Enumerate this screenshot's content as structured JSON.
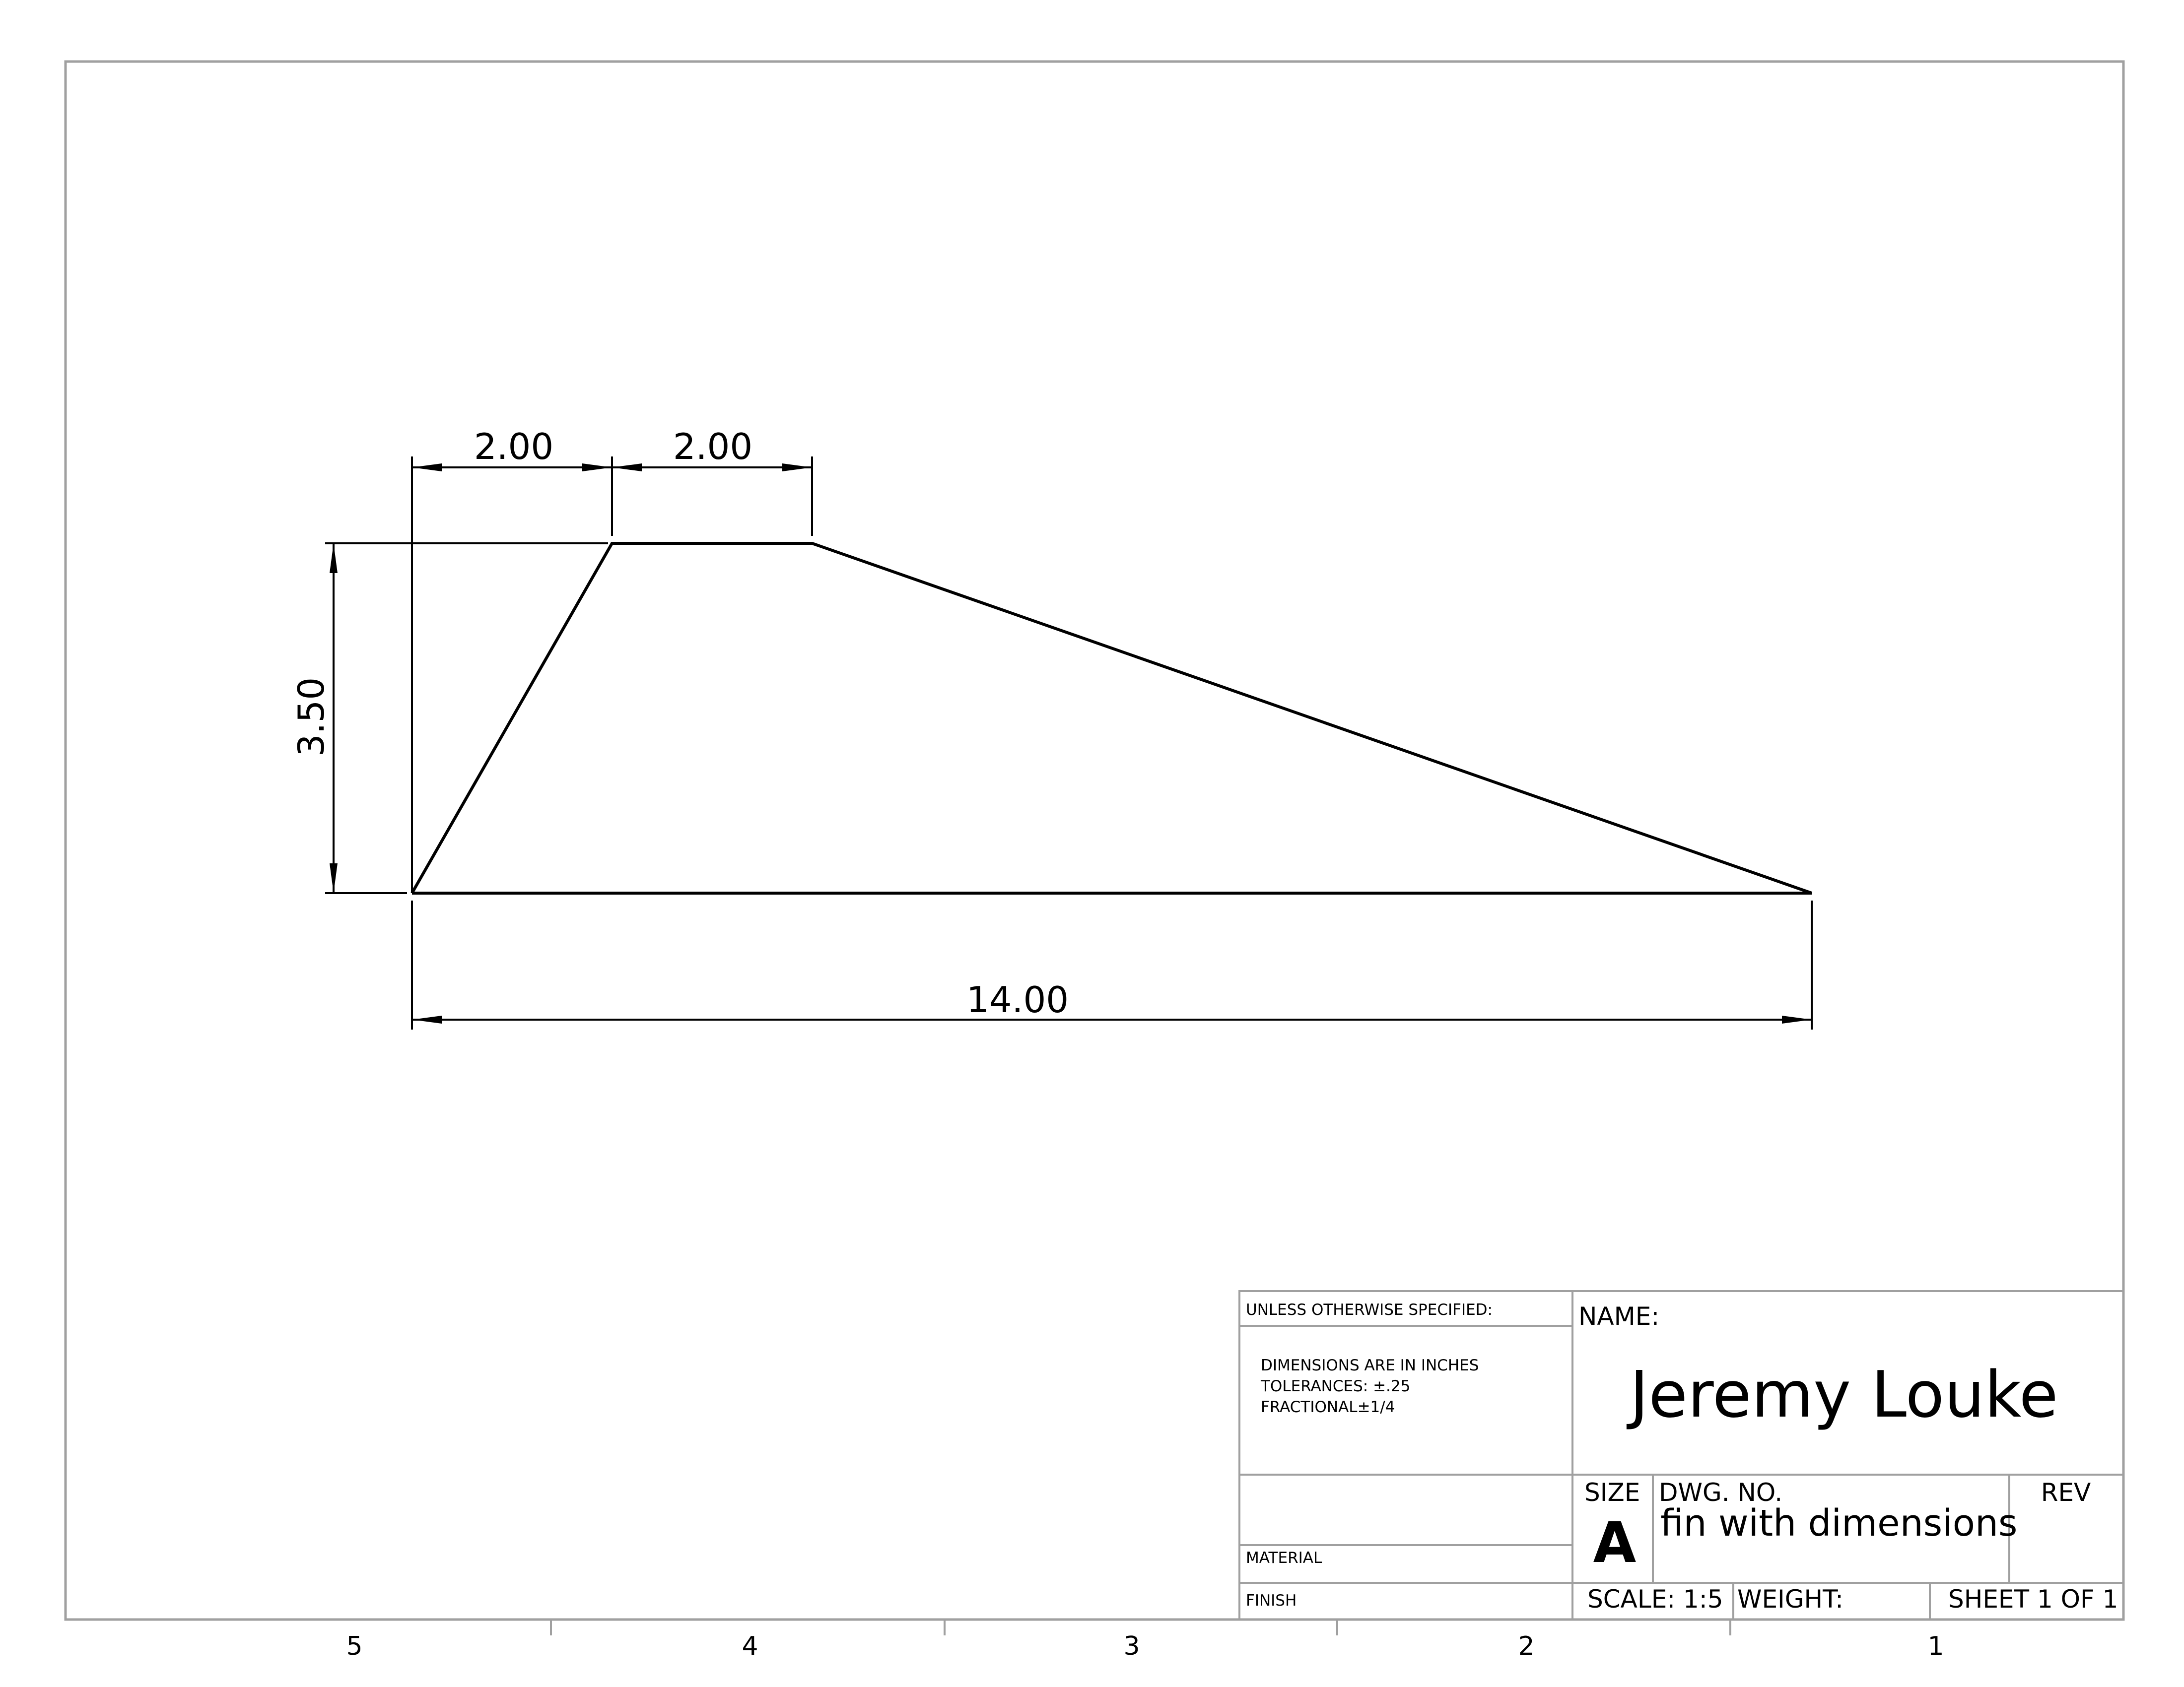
{
  "dimensions": {
    "top_left_width": "2.00",
    "top_flat_width": "2.00",
    "height": "3.50",
    "base_length": "14.00"
  },
  "zones": [
    "5",
    "4",
    "3",
    "2",
    "1"
  ],
  "title_block": {
    "unless_specified": "UNLESS OTHERWISE SPECIFIED:",
    "notes": [
      "DIMENSIONS ARE IN INCHES",
      "TOLERANCES: ±.25",
      "FRACTIONAL±1/4"
    ],
    "material_label": "MATERIAL",
    "finish_label": "FINISH",
    "name_label": "NAME:",
    "name_value": "Jeremy Louke",
    "size_label": "SIZE",
    "size_value": "A",
    "dwg_no_label": "DWG.  NO.",
    "dwg_no_value": "fin with dimensions",
    "rev_label": "REV",
    "scale": "SCALE: 1:5",
    "weight": "WEIGHT:",
    "sheet": "SHEET 1 OF 1"
  },
  "colors": {
    "line": "#000000",
    "border": "#a0a0a0"
  }
}
